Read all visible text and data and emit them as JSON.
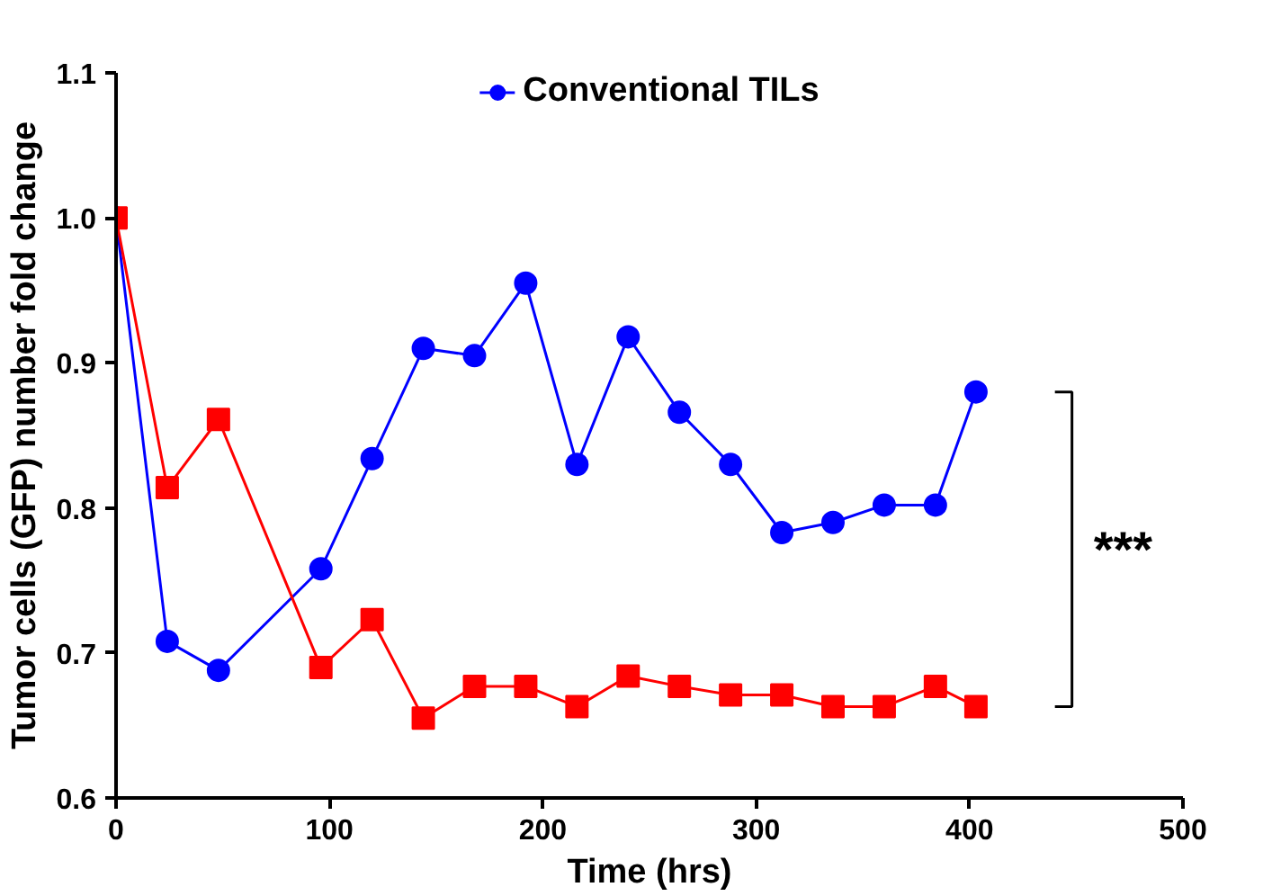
{
  "chart_data": {
    "type": "line",
    "xlabel": "Time (hrs)",
    "ylabel": "Tumor cells (GFP) number fold change",
    "x": [
      0,
      24,
      48,
      96,
      120,
      144,
      168,
      192,
      216,
      240,
      264,
      288,
      312,
      336,
      360,
      384,
      403
    ],
    "series": [
      {
        "name": "Conventional TILs",
        "color": "#0000ff",
        "marker": "circle",
        "values": [
          1.0,
          0.708,
          0.688,
          0.758,
          0.834,
          0.91,
          0.905,
          0.955,
          0.83,
          0.918,
          0.866,
          0.83,
          0.783,
          0.79,
          0.802,
          0.802,
          0.88
        ]
      },
      {
        "color": "#ff0000",
        "marker": "square",
        "values": [
          1.0,
          0.814,
          0.861,
          0.69,
          0.723,
          0.655,
          0.677,
          0.677,
          0.663,
          0.684,
          0.677,
          0.671,
          0.671,
          0.663,
          0.663,
          0.677,
          0.663
        ]
      }
    ],
    "xlim": [
      0,
      500
    ],
    "ylim": [
      0.6,
      1.1
    ],
    "xticks": [
      0,
      100,
      200,
      300,
      400,
      500
    ],
    "yticks": [
      0.6,
      0.7,
      0.8,
      0.9,
      {
        "value": 1.0,
        "label": "1.0"
      },
      1.1
    ],
    "annotations": [
      "***"
    ],
    "grid": false,
    "legend": "top",
    "line_style": "solid"
  }
}
